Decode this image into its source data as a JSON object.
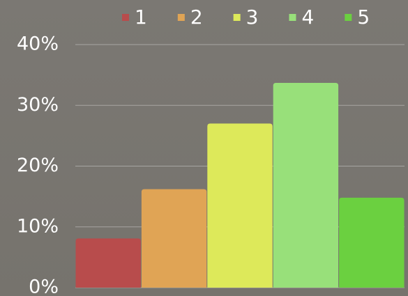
{
  "chart_data": {
    "type": "bar",
    "categories": [
      null
    ],
    "series": [
      {
        "name": "1",
        "color": "#b84c4c",
        "values": [
          8.1
        ]
      },
      {
        "name": "2",
        "color": "#e0a455",
        "values": [
          16.2
        ]
      },
      {
        "name": "3",
        "color": "#dde95a",
        "values": [
          27
        ]
      },
      {
        "name": "4",
        "color": "#98e07a",
        "values": [
          33.7
        ]
      },
      {
        "name": "5",
        "color": "#6bd040",
        "values": [
          14.8
        ]
      }
    ],
    "ylim": [
      0,
      40
    ],
    "yticks": [
      {
        "value": 0,
        "label": "0%"
      },
      {
        "value": 10,
        "label": "10%"
      },
      {
        "value": 20,
        "label": "20%"
      },
      {
        "value": 30,
        "label": "30%"
      },
      {
        "value": 40,
        "label": "40%"
      }
    ],
    "grid": true,
    "legend": "top"
  }
}
